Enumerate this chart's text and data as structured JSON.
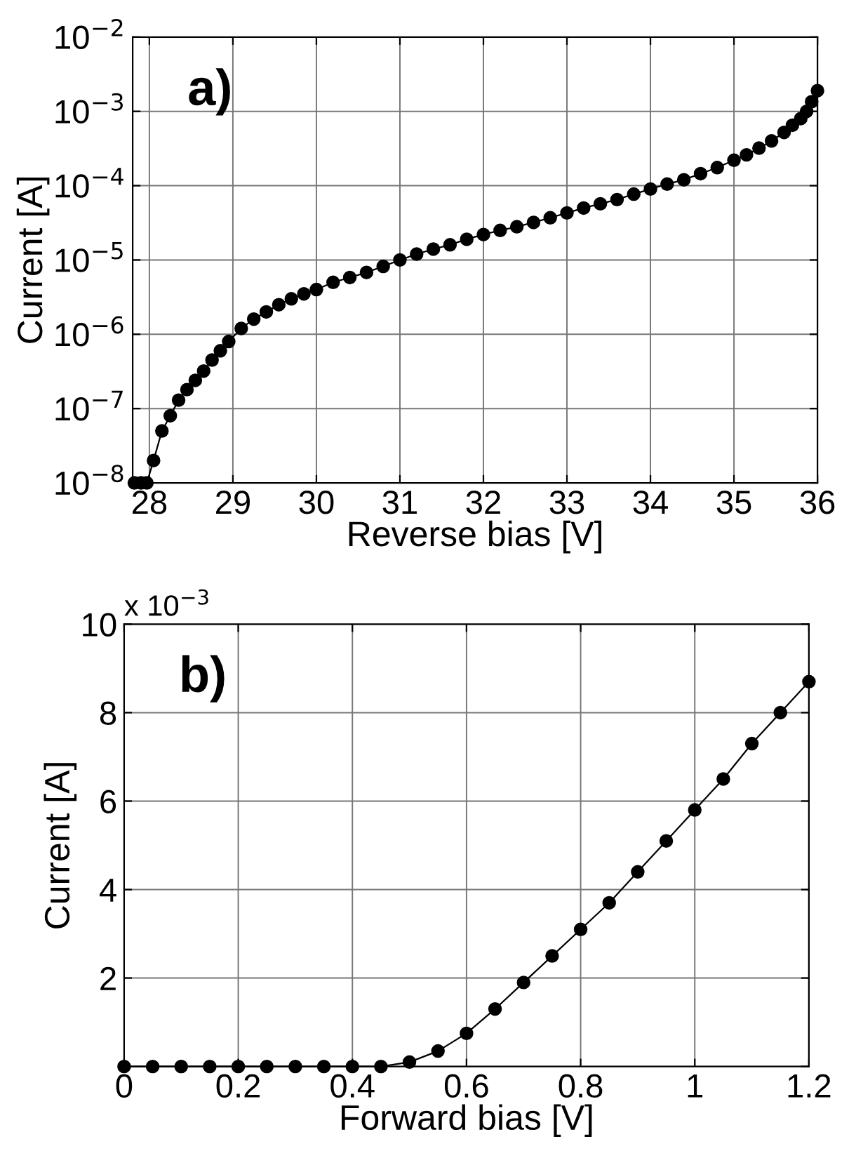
{
  "chart_data": [
    {
      "type": "line",
      "xlabel": "Reverse bias [V]",
      "ylabel": "Current [A]",
      "annotations": [
        "a)"
      ],
      "log": "y",
      "grid": true,
      "marker": "circle",
      "line_style": "solid",
      "xlim": [
        27.8,
        36
      ],
      "xticks": [
        28,
        29,
        30,
        31,
        32,
        33,
        34,
        35,
        36
      ],
      "ylim": [
        1e-08,
        0.01
      ],
      "yticks": [
        {
          "value": 1e-08,
          "label": "10$^{−8}$"
        },
        {
          "value": 1e-07,
          "label": "10$^{−7}$"
        },
        {
          "value": 1e-06,
          "label": "10$^{−6}$"
        },
        {
          "value": 1e-05,
          "label": "10$^{−5}$"
        },
        {
          "value": 0.0001,
          "label": "10$^{−4}$"
        },
        {
          "value": 0.001,
          "label": "10$^{−3}$"
        },
        {
          "value": 0.01,
          "label": "10$^{−2}$"
        }
      ],
      "series": [
        {
          "color": "#000000",
          "x": [
            27.82,
            27.9,
            27.97,
            28.05,
            28.15,
            28.25,
            28.35,
            28.45,
            28.55,
            28.65,
            28.75,
            28.85,
            28.95,
            29.1,
            29.25,
            29.4,
            29.55,
            29.7,
            29.85,
            30.0,
            30.2,
            30.4,
            30.6,
            30.8,
            31.0,
            31.2,
            31.4,
            31.6,
            31.8,
            32.0,
            32.2,
            32.4,
            32.6,
            32.8,
            33.0,
            33.2,
            33.4,
            33.6,
            33.8,
            34.0,
            34.2,
            34.4,
            34.6,
            34.8,
            35.0,
            35.15,
            35.3,
            35.45,
            35.6,
            35.7,
            35.8,
            35.87,
            35.93,
            36.0
          ],
          "values": [
            1e-08,
            1e-08,
            1e-08,
            2e-08,
            5e-08,
            8e-08,
            1.3e-07,
            1.8e-07,
            2.4e-07,
            3.2e-07,
            4.5e-07,
            6e-07,
            8e-07,
            1.2e-06,
            1.6e-06,
            2e-06,
            2.5e-06,
            3e-06,
            3.5e-06,
            4e-06,
            5e-06,
            5.8e-06,
            6.8e-06,
            8.2e-06,
            1e-05,
            1.2e-05,
            1.4e-05,
            1.6e-05,
            1.9e-05,
            2.2e-05,
            2.5e-05,
            2.8e-05,
            3.2e-05,
            3.7e-05,
            4.3e-05,
            5e-05,
            5.7e-05,
            6.5e-05,
            7.7e-05,
            9e-05,
            0.000105,
            0.00012,
            0.000145,
            0.000175,
            0.00022,
            0.00026,
            0.00032,
            0.0004,
            0.00052,
            0.00065,
            0.0008,
            0.001,
            0.00135,
            0.0019
          ]
        }
      ]
    },
    {
      "type": "line",
      "xlabel": "Forward bias [V]",
      "ylabel": "Current [A]",
      "annotations": [
        "b)",
        "x 10$^{−3}$"
      ],
      "grid": true,
      "marker": "circle",
      "line_style": "solid",
      "xlim": [
        0,
        1.2
      ],
      "xticks": [
        0,
        0.2,
        0.4,
        0.6,
        0.8,
        1,
        1.2
      ],
      "ylim": [
        0,
        10
      ],
      "yticks": [
        {
          "value": 0,
          "label": null
        },
        2,
        4,
        6,
        8,
        10
      ],
      "series": [
        {
          "color": "#000000",
          "x": [
            0,
            0.05,
            0.1,
            0.15,
            0.2,
            0.25,
            0.3,
            0.35,
            0.4,
            0.45,
            0.5,
            0.55,
            0.6,
            0.65,
            0.7,
            0.75,
            0.8,
            0.85,
            0.9,
            0.95,
            1.0,
            1.05,
            1.1,
            1.15,
            1.2
          ],
          "values": [
            0,
            0,
            0,
            0,
            0,
            0,
            0,
            0,
            0,
            0,
            0.1,
            0.35,
            0.75,
            1.3,
            1.9,
            2.5,
            3.1,
            3.7,
            4.4,
            5.1,
            5.8,
            6.5,
            7.3,
            8.0,
            8.7
          ]
        }
      ]
    }
  ]
}
